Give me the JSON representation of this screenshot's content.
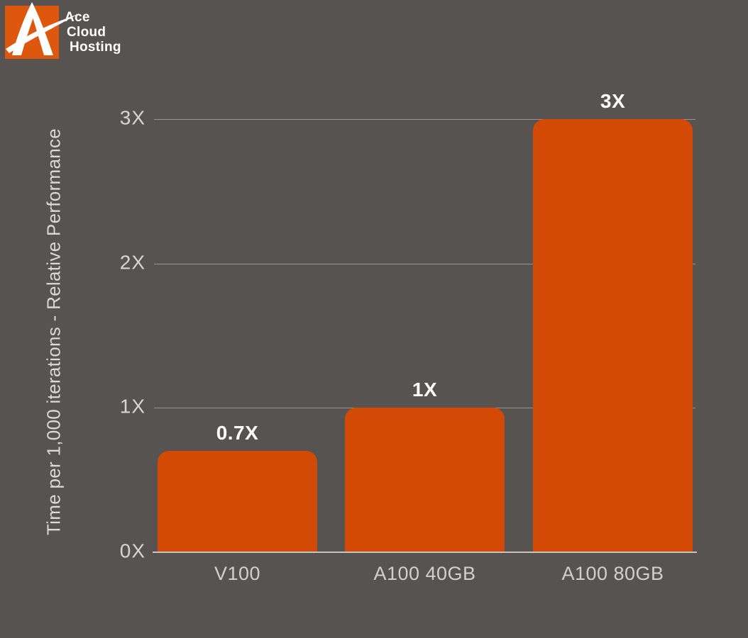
{
  "brand": {
    "name_lines": [
      "Ace",
      "Cloud",
      "Hosting"
    ],
    "logo_color": "#dd570e",
    "mark": "ace-a-swoosh-icon"
  },
  "chart_data": {
    "type": "bar",
    "title": "",
    "categories": [
      "V100",
      "A100 40GB",
      "A100 80GB"
    ],
    "values": [
      0.7,
      1,
      3
    ],
    "value_labels": [
      "0.7X",
      "1X",
      "3X"
    ],
    "ylabel": "Time per 1,000 iterations - Relative Performance",
    "xlabel": "",
    "ytick_values": [
      0,
      1,
      2,
      3
    ],
    "ytick_labels": [
      "0X",
      "1X",
      "2X",
      "3X"
    ],
    "ylim": [
      0,
      3
    ],
    "grid": true,
    "legend": "none",
    "bar_color": "#d34a06",
    "background_color": "#575350",
    "axis_text_color": "#d8d4d1",
    "value_label_color": "#ffffff"
  }
}
